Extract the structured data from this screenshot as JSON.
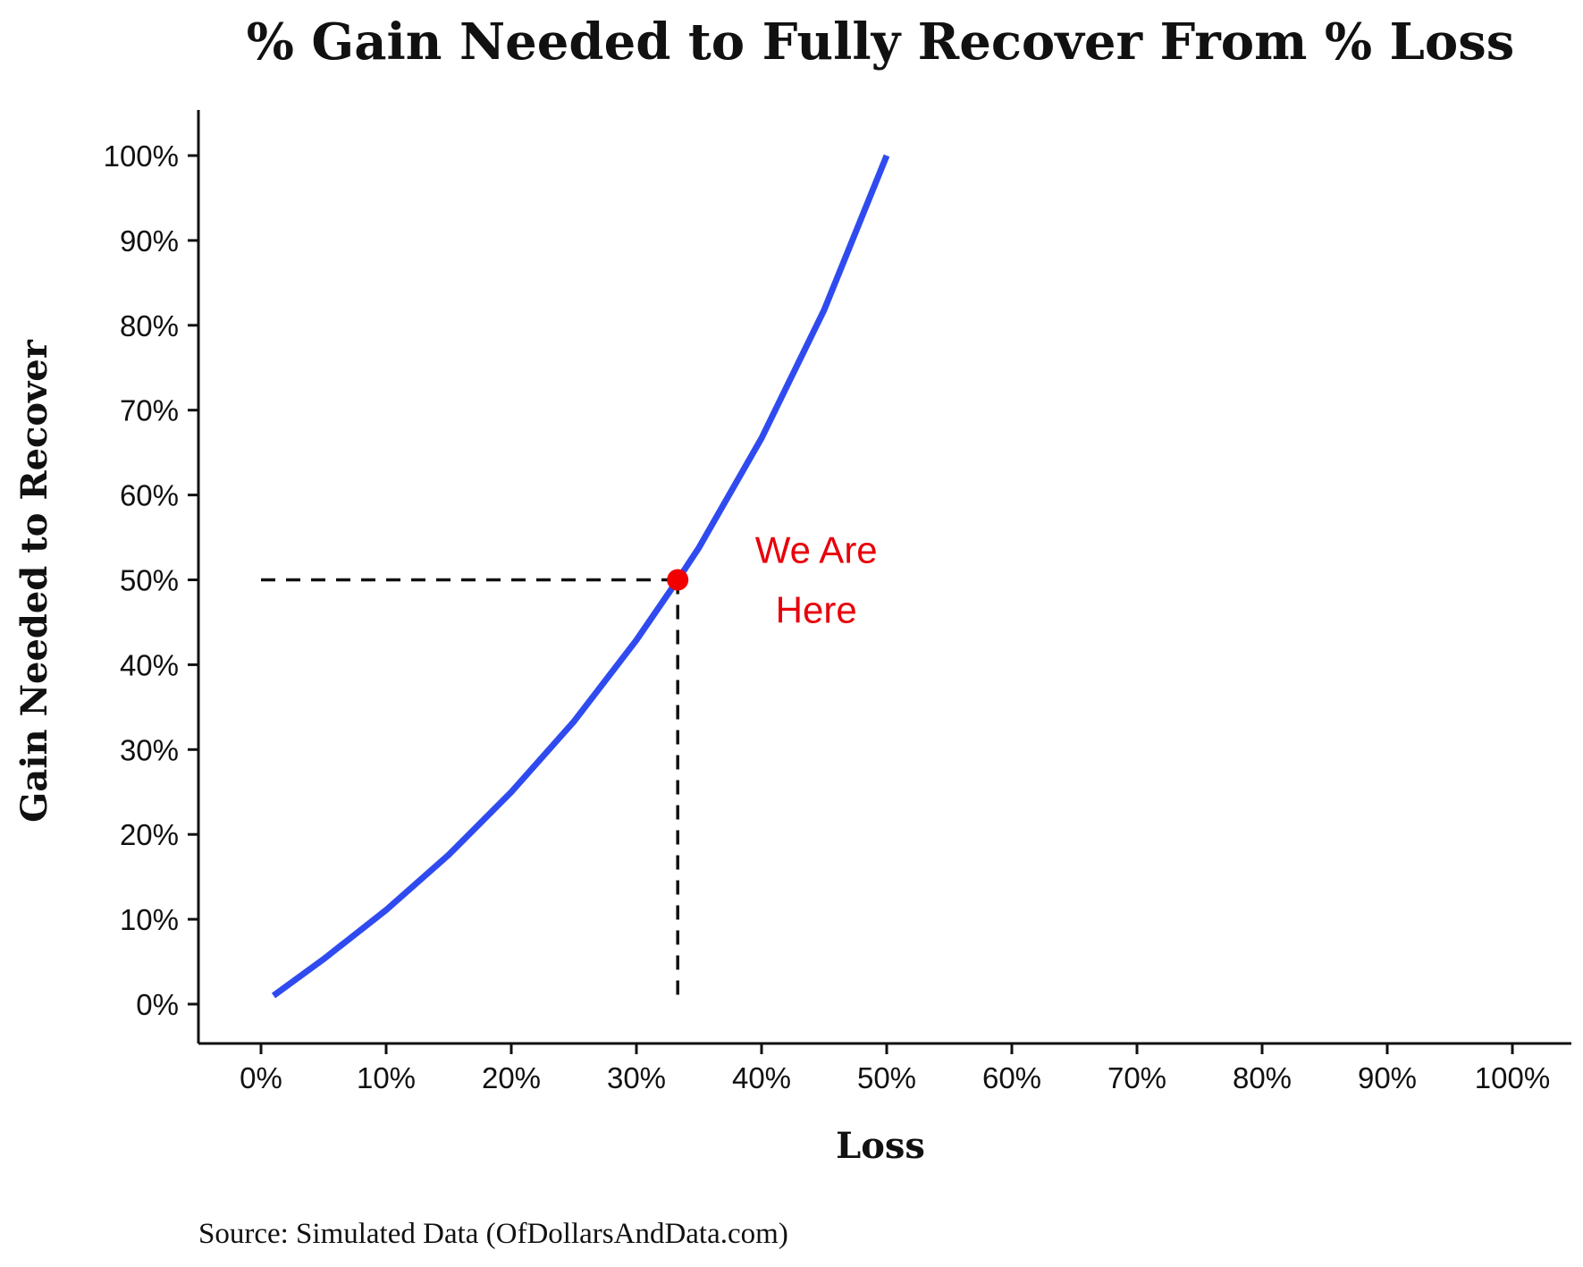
{
  "chart_data": {
    "type": "line",
    "title": "% Gain Needed to Fully Recover From % Loss",
    "xlabel": "Loss",
    "ylabel": "Gain Needed to Recover",
    "source": "Source:  Simulated Data (OfDollarsAndData.com)",
    "xlim": [
      0,
      100
    ],
    "ylim": [
      0,
      100
    ],
    "x_ticks": [
      "0%",
      "10%",
      "20%",
      "30%",
      "40%",
      "50%",
      "60%",
      "70%",
      "80%",
      "90%",
      "100%"
    ],
    "y_ticks": [
      "0%",
      "10%",
      "20%",
      "30%",
      "40%",
      "50%",
      "60%",
      "70%",
      "80%",
      "90%",
      "100%"
    ],
    "grid": false,
    "series": [
      {
        "x": [
          1,
          5,
          10,
          15,
          20,
          25,
          30,
          33.3,
          35,
          40,
          45,
          50
        ],
        "y": [
          1.0,
          5.3,
          11.1,
          17.6,
          25.0,
          33.3,
          42.9,
          50.0,
          53.8,
          66.7,
          81.8,
          100.0
        ],
        "color": "#2f4bf0"
      }
    ],
    "highlight_point": {
      "x": 33.3,
      "y": 50,
      "color": "#f20000"
    },
    "annotation": {
      "lines": [
        "We Are",
        "Here"
      ],
      "color": "#e8000a"
    },
    "reference_lines": {
      "style": "dashed",
      "color": "#111111"
    }
  }
}
